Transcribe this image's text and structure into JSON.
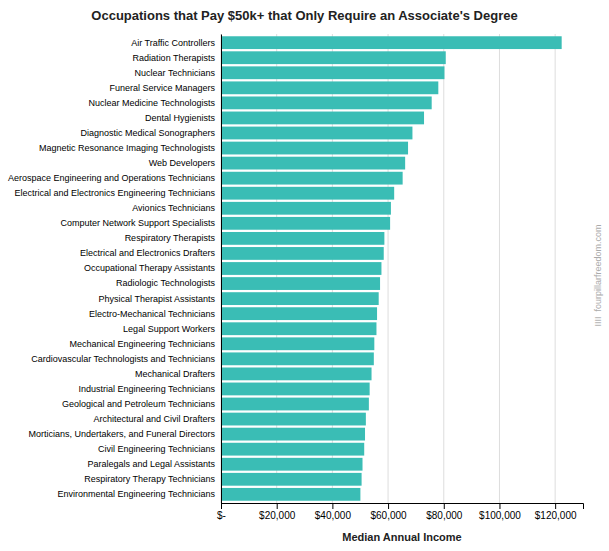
{
  "chart_data": {
    "type": "bar",
    "orientation": "horizontal",
    "title": "Occupations that Pay $50k+ that Only Require an Associate's Degree",
    "xlabel": "Median Annual Income",
    "categories": [
      "Air Traffic Controllers",
      "Radiation Therapists",
      "Nuclear Technicians",
      "Funeral Service Managers",
      "Nuclear Medicine Technologists",
      "Dental Hygienists",
      "Diagnostic Medical Sonographers",
      "Magnetic Resonance Imaging Technologists",
      "Web Developers",
      "Aerospace Engineering and Operations Technicians",
      "Electrical and Electronics Engineering Technicians",
      "Avionics Technicians",
      "Computer Network Support Specialists",
      "Respiratory Therapists",
      "Electrical and Electronics Drafters",
      "Occupational Therapy Assistants",
      "Radiologic Technologists",
      "Physical Therapist Assistants",
      "Electro-Mechanical Technicians",
      "Legal Support Workers",
      "Mechanical Engineering Technicians",
      "Cardiovascular Technologists and Technicians",
      "Mechanical Drafters",
      "Industrial Engineering Technicians",
      "Geological and Petroleum Technicians",
      "Architectural and Civil Drafters",
      "Morticians, Undertakers, and Funeral Directors",
      "Civil Engineering Technicians",
      "Paralegals and Legal Assistants",
      "Respiratory Therapy Technicians",
      "Environmental Engineering Technicians"
    ],
    "values": [
      122340,
      80710,
      80250,
      78040,
      75660,
      72910,
      68750,
      67170,
      66130,
      65230,
      62190,
      61020,
      60730,
      58670,
      58440,
      57620,
      57120,
      56630,
      56040,
      55830,
      55060,
      54880,
      54060,
      53380,
      53100,
      52020,
      51720,
      51430,
      50820,
      50490,
      50060
    ],
    "color": "#3ABDB5",
    "xlim": [
      0,
      130000
    ],
    "xticks": [
      {
        "value": 0,
        "label": "$-"
      },
      {
        "value": 20000,
        "label": "$20,000"
      },
      {
        "value": 40000,
        "label": "$40,000"
      },
      {
        "value": 60000,
        "label": "$60,000"
      },
      {
        "value": 80000,
        "label": "$80,000"
      },
      {
        "value": 100000,
        "label": "$100,000"
      },
      {
        "value": 120000,
        "label": "$120,000"
      }
    ],
    "grid": true,
    "annotations": [
      "IIII  fourpillarfreedom.com"
    ]
  }
}
